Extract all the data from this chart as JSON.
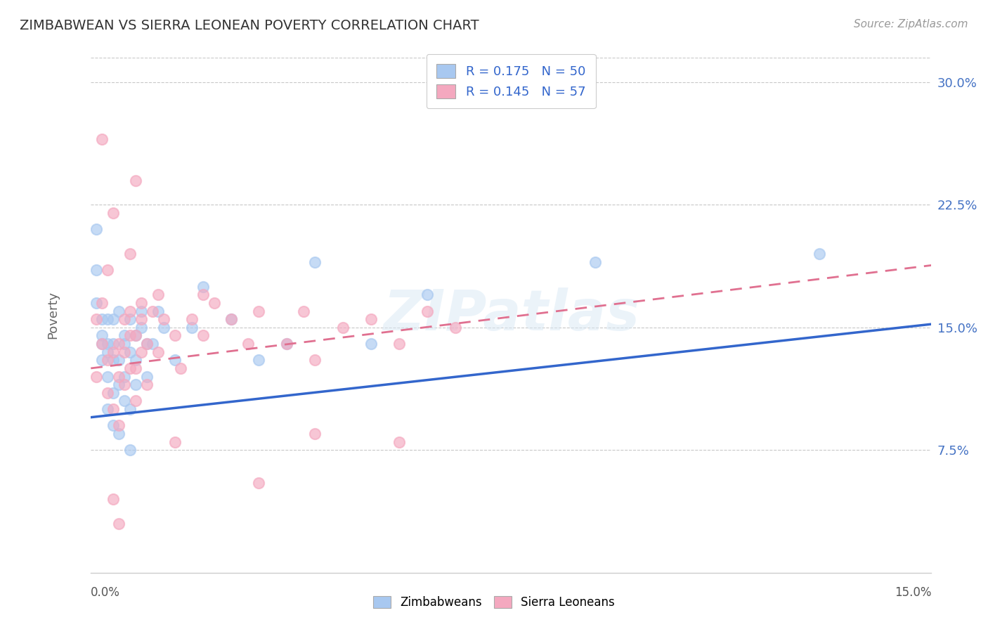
{
  "title": "ZIMBABWEAN VS SIERRA LEONEAN POVERTY CORRELATION CHART",
  "source": "Source: ZipAtlas.com",
  "ylabel": "Poverty",
  "xlim": [
    0.0,
    0.15
  ],
  "ylim": [
    0.0,
    0.315
  ],
  "yticks": [
    0.075,
    0.15,
    0.225,
    0.3
  ],
  "ytick_labels": [
    "7.5%",
    "15.0%",
    "22.5%",
    "30.0%"
  ],
  "blue_color": "#a8c8f0",
  "pink_color": "#f4a8bf",
  "blue_line_color": "#3366cc",
  "pink_line_color": "#e07090",
  "title_color": "#3a3a3a",
  "axis_label_color": "#4472c4",
  "watermark": "ZIPatlas",
  "footer_label1": "Zimbabweans",
  "footer_label2": "Sierra Leoneans",
  "bg_color": "#ffffff",
  "grid_color": "#c8c8c8",
  "blue_trend": [
    0.095,
    0.152
  ],
  "pink_trend": [
    0.125,
    0.188
  ],
  "blue_scatter_x": [
    0.001,
    0.001,
    0.001,
    0.002,
    0.002,
    0.002,
    0.002,
    0.003,
    0.003,
    0.003,
    0.003,
    0.003,
    0.004,
    0.004,
    0.004,
    0.004,
    0.004,
    0.005,
    0.005,
    0.005,
    0.005,
    0.006,
    0.006,
    0.006,
    0.006,
    0.007,
    0.007,
    0.007,
    0.007,
    0.008,
    0.008,
    0.008,
    0.009,
    0.009,
    0.01,
    0.01,
    0.011,
    0.012,
    0.013,
    0.015,
    0.018,
    0.02,
    0.025,
    0.03,
    0.035,
    0.04,
    0.05,
    0.06,
    0.09,
    0.13
  ],
  "blue_scatter_y": [
    0.185,
    0.165,
    0.21,
    0.145,
    0.13,
    0.155,
    0.14,
    0.14,
    0.12,
    0.135,
    0.1,
    0.155,
    0.14,
    0.13,
    0.11,
    0.09,
    0.155,
    0.16,
    0.13,
    0.115,
    0.085,
    0.145,
    0.12,
    0.105,
    0.14,
    0.155,
    0.135,
    0.1,
    0.075,
    0.145,
    0.13,
    0.115,
    0.16,
    0.15,
    0.14,
    0.12,
    0.14,
    0.16,
    0.15,
    0.13,
    0.15,
    0.175,
    0.155,
    0.13,
    0.14,
    0.19,
    0.14,
    0.17,
    0.19,
    0.195
  ],
  "pink_scatter_x": [
    0.001,
    0.001,
    0.002,
    0.002,
    0.003,
    0.003,
    0.003,
    0.004,
    0.004,
    0.004,
    0.005,
    0.005,
    0.005,
    0.006,
    0.006,
    0.006,
    0.007,
    0.007,
    0.007,
    0.008,
    0.008,
    0.008,
    0.009,
    0.009,
    0.009,
    0.01,
    0.01,
    0.011,
    0.012,
    0.013,
    0.015,
    0.016,
    0.018,
    0.02,
    0.022,
    0.025,
    0.028,
    0.03,
    0.035,
    0.038,
    0.04,
    0.045,
    0.05,
    0.055,
    0.06,
    0.065,
    0.02,
    0.007,
    0.008,
    0.012,
    0.015,
    0.04,
    0.055,
    0.03,
    0.005,
    0.004,
    0.002
  ],
  "pink_scatter_y": [
    0.12,
    0.155,
    0.14,
    0.265,
    0.13,
    0.11,
    0.185,
    0.22,
    0.135,
    0.1,
    0.14,
    0.12,
    0.09,
    0.155,
    0.135,
    0.115,
    0.145,
    0.125,
    0.16,
    0.145,
    0.125,
    0.105,
    0.165,
    0.135,
    0.155,
    0.115,
    0.14,
    0.16,
    0.135,
    0.155,
    0.145,
    0.125,
    0.155,
    0.145,
    0.165,
    0.155,
    0.14,
    0.16,
    0.14,
    0.16,
    0.13,
    0.15,
    0.155,
    0.14,
    0.16,
    0.15,
    0.17,
    0.195,
    0.24,
    0.17,
    0.08,
    0.085,
    0.08,
    0.055,
    0.03,
    0.045,
    0.165
  ]
}
